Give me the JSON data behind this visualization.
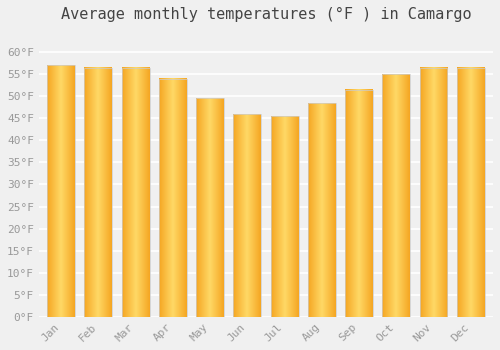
{
  "title": "Average monthly temperatures (°F ) in Camargo",
  "months": [
    "Jan",
    "Feb",
    "Mar",
    "Apr",
    "May",
    "Jun",
    "Jul",
    "Aug",
    "Sep",
    "Oct",
    "Nov",
    "Dec"
  ],
  "values": [
    57,
    56.5,
    56.5,
    54,
    49.5,
    46,
    45.5,
    48.5,
    51.5,
    55,
    56.5,
    56.5
  ],
  "bar_color_center": "#FFD966",
  "bar_color_edge": "#F5A623",
  "ylim": [
    0,
    65
  ],
  "yticks": [
    0,
    5,
    10,
    15,
    20,
    25,
    30,
    35,
    40,
    45,
    50,
    55,
    60
  ],
  "ylabel_suffix": "°F",
  "background_color": "#f0f0f0",
  "grid_color": "#ffffff",
  "tick_color": "#999999",
  "title_fontsize": 11,
  "tick_fontsize": 8,
  "bar_width": 0.75
}
